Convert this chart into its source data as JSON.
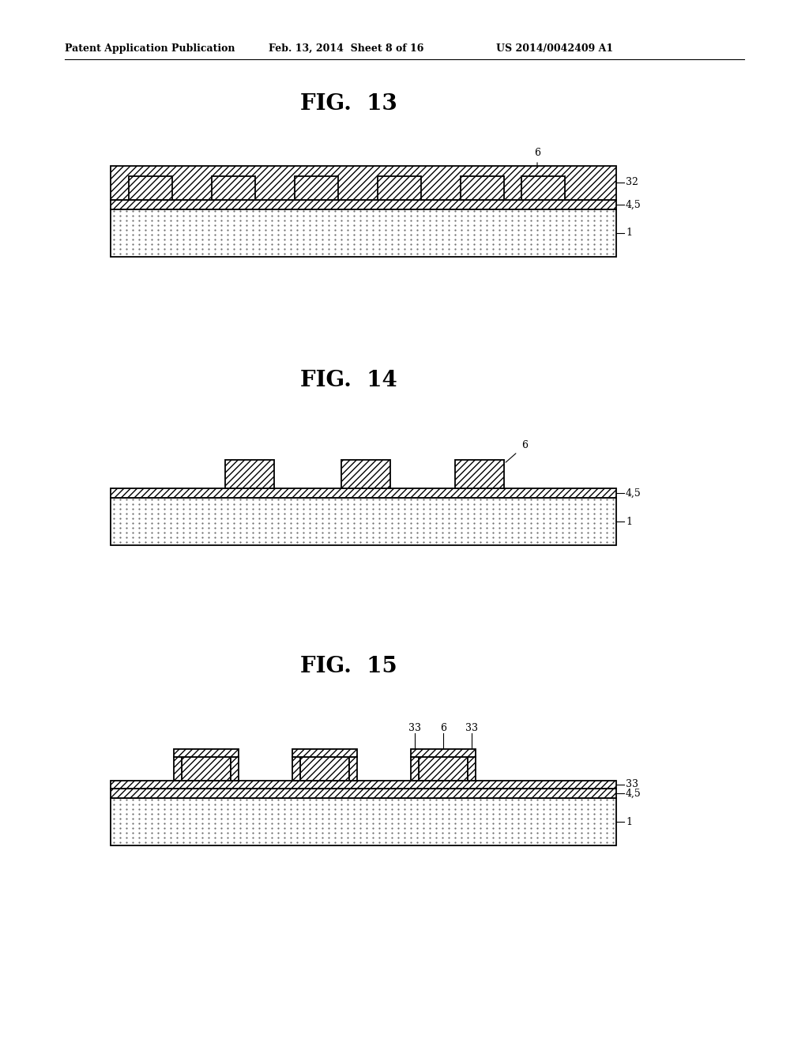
{
  "header_left": "Patent Application Publication",
  "header_mid": "Feb. 13, 2014  Sheet 8 of 16",
  "header_right": "US 2014/0042409 A1",
  "fig13_title": "FIG.  13",
  "fig14_title": "FIG.  14",
  "fig15_title": "FIG.  15",
  "bg_color": "#ffffff",
  "line_color": "#000000"
}
